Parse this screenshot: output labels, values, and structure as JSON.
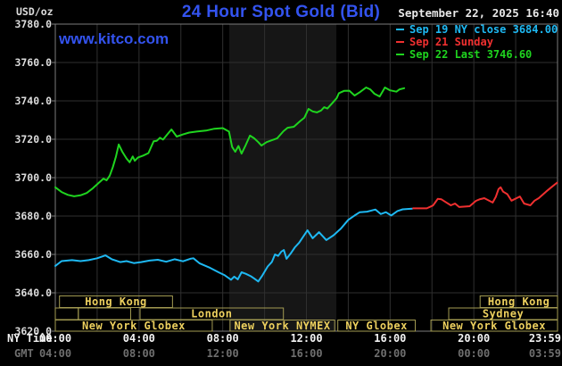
{
  "header": {
    "unit_label": "USD/oz",
    "title": "24 Hour Spot Gold (Bid)",
    "timestamp": "September 22, 2025 16:40",
    "watermark": "www.kitco.com"
  },
  "legend": [
    {
      "label": "Sep 19 NY close 3684.00",
      "color": "#1eb8f2"
    },
    {
      "label": "Sep 21 Sunday",
      "color": "#f03030"
    },
    {
      "label": "Sep 22 Last 3746.60",
      "color": "#1fd41f"
    }
  ],
  "colors": {
    "background": "#000000",
    "grid": "#2f2f2f",
    "frame": "#7d7d7d",
    "band": "#161616",
    "session_border": "#a39b52",
    "session_text": "#edd05e",
    "y_tick_text": "#dcdcdc",
    "ny_time_text": "#f2f2f2",
    "gmt_text": "#6f6f6f",
    "title_blue": "#3353ef"
  },
  "chart_data": {
    "type": "line",
    "title": "24 Hour Spot Gold (Bid)",
    "unit": "USD/oz",
    "xlim_hours": [
      0,
      24
    ],
    "ylim": [
      3620,
      3780
    ],
    "y_tick_step": 20,
    "y_tick_labels": [
      "3780.0",
      "3760.0",
      "3740.0",
      "3720.0",
      "3700.0",
      "3680.0",
      "3660.0",
      "3640.0",
      "3620.0"
    ],
    "x_tick_hours": [
      0,
      4,
      8,
      12,
      16,
      20,
      23.983
    ],
    "x_tick_rows": [
      {
        "label": "NY Time",
        "ticks": [
          "00:00",
          "04:00",
          "08:00",
          "12:00",
          "16:00",
          "20:00",
          "23:59"
        ]
      },
      {
        "label": "GMT",
        "ticks": [
          "04:00",
          "08:00",
          "12:00",
          "16:00",
          "20:00",
          "00:00",
          "03:59"
        ]
      }
    ],
    "grid_v_step_hours": 2,
    "highlight_band": {
      "start_h": 8.31,
      "end_h": 13.43
    },
    "sessions": [
      {
        "row": 0,
        "label": "Hong Kong",
        "start_h": 0.2,
        "end_h": 5.6
      },
      {
        "row": 0,
        "label": "Hong Kong",
        "start_h": 20.3,
        "end_h": 24
      },
      {
        "row": 1,
        "label": "",
        "start_h": 0,
        "end_h": 1.1
      },
      {
        "row": 1,
        "label": "",
        "start_h": 1.1,
        "end_h": 3.6
      },
      {
        "row": 1,
        "label": "London",
        "start_h": 4.05,
        "end_h": 10.9
      },
      {
        "row": 1,
        "label": "Sydney",
        "start_h": 18.8,
        "end_h": 24
      },
      {
        "row": 2,
        "label": "New York Globex",
        "start_h": 0,
        "end_h": 7.5
      },
      {
        "row": 2,
        "label": "New York NYMEX",
        "start_h": 8.35,
        "end_h": 13.35
      },
      {
        "row": 2,
        "label": "NY Globex",
        "start_h": 13.5,
        "end_h": 17.2
      },
      {
        "row": 2,
        "label": "New York Globex",
        "start_h": 17.95,
        "end_h": 24
      }
    ],
    "series": [
      {
        "name": "Sep 19 NY close 3684.00",
        "color": "#1eb8f2",
        "points": [
          [
            0,
            3654
          ],
          [
            0.3,
            3656.5
          ],
          [
            0.8,
            3657
          ],
          [
            1.2,
            3656.5
          ],
          [
            1.6,
            3657
          ],
          [
            2,
            3658
          ],
          [
            2.4,
            3659.5
          ],
          [
            2.7,
            3657.5
          ],
          [
            3.1,
            3656
          ],
          [
            3.4,
            3656.5
          ],
          [
            3.75,
            3655.5
          ],
          [
            4.1,
            3656
          ],
          [
            4.5,
            3656.8
          ],
          [
            4.9,
            3657.2
          ],
          [
            5.3,
            3656.2
          ],
          [
            5.7,
            3657.5
          ],
          [
            6.1,
            3656.4
          ],
          [
            6.45,
            3657.7
          ],
          [
            6.6,
            3658
          ],
          [
            6.9,
            3655.3
          ],
          [
            7.4,
            3653
          ],
          [
            7.8,
            3650.7
          ],
          [
            8.1,
            3649.1
          ],
          [
            8.4,
            3646.8
          ],
          [
            8.55,
            3648.4
          ],
          [
            8.72,
            3647
          ],
          [
            8.9,
            3650.7
          ],
          [
            9.1,
            3649.9
          ],
          [
            9.35,
            3648.6
          ],
          [
            9.5,
            3647.5
          ],
          [
            9.7,
            3645.9
          ],
          [
            9.9,
            3649.1
          ],
          [
            10.15,
            3653.7
          ],
          [
            10.35,
            3656.1
          ],
          [
            10.5,
            3660
          ],
          [
            10.65,
            3659.2
          ],
          [
            10.8,
            3661.5
          ],
          [
            10.92,
            3662.3
          ],
          [
            11.05,
            3657.7
          ],
          [
            11.25,
            3660.5
          ],
          [
            11.45,
            3663.7
          ],
          [
            11.65,
            3666.1
          ],
          [
            12.05,
            3672.6
          ],
          [
            12.3,
            3668.4
          ],
          [
            12.6,
            3671.6
          ],
          [
            12.95,
            3667.5
          ],
          [
            13.3,
            3670
          ],
          [
            13.65,
            3673.5
          ],
          [
            14,
            3678
          ],
          [
            14.3,
            3680.3
          ],
          [
            14.55,
            3682
          ],
          [
            14.9,
            3682.3
          ],
          [
            15.3,
            3683.4
          ],
          [
            15.55,
            3681
          ],
          [
            15.8,
            3682
          ],
          [
            16.05,
            3680.3
          ],
          [
            16.35,
            3682.6
          ],
          [
            16.6,
            3683.5
          ],
          [
            17.05,
            3683.8
          ]
        ]
      },
      {
        "name": "Sep 21 Sunday",
        "color": "#f03030",
        "points": [
          [
            17.1,
            3684
          ],
          [
            17.75,
            3684
          ],
          [
            18.05,
            3685.5
          ],
          [
            18.15,
            3687
          ],
          [
            18.28,
            3689
          ],
          [
            18.45,
            3688.7
          ],
          [
            18.65,
            3687.3
          ],
          [
            18.9,
            3685.6
          ],
          [
            19.1,
            3686.5
          ],
          [
            19.3,
            3684.7
          ],
          [
            19.8,
            3685.1
          ],
          [
            20.1,
            3687.9
          ],
          [
            20.3,
            3688.8
          ],
          [
            20.5,
            3689.3
          ],
          [
            20.9,
            3687
          ],
          [
            21.05,
            3690
          ],
          [
            21.18,
            3694
          ],
          [
            21.28,
            3695
          ],
          [
            21.4,
            3692.7
          ],
          [
            21.6,
            3691.4
          ],
          [
            21.8,
            3688
          ],
          [
            22.2,
            3690.2
          ],
          [
            22.4,
            3686.5
          ],
          [
            22.7,
            3685.6
          ],
          [
            22.9,
            3688
          ],
          [
            23.1,
            3689.3
          ],
          [
            23.45,
            3692.7
          ],
          [
            23.7,
            3695
          ],
          [
            23.98,
            3697.4
          ]
        ]
      },
      {
        "name": "Sep 22 Last 3746.60",
        "color": "#1fd41f",
        "points": [
          [
            0,
            3695
          ],
          [
            0.3,
            3692.5
          ],
          [
            0.6,
            3691
          ],
          [
            0.9,
            3690.3
          ],
          [
            1.2,
            3690.8
          ],
          [
            1.5,
            3692
          ],
          [
            1.8,
            3694.5
          ],
          [
            2.05,
            3697
          ],
          [
            2.3,
            3699.5
          ],
          [
            2.45,
            3698.6
          ],
          [
            2.6,
            3701
          ],
          [
            2.75,
            3705.5
          ],
          [
            2.9,
            3711
          ],
          [
            3.03,
            3717.3
          ],
          [
            3.2,
            3713.5
          ],
          [
            3.4,
            3710
          ],
          [
            3.55,
            3708
          ],
          [
            3.7,
            3711
          ],
          [
            3.8,
            3708.8
          ],
          [
            3.95,
            3710.5
          ],
          [
            4.2,
            3711.5
          ],
          [
            4.45,
            3712.8
          ],
          [
            4.7,
            3719
          ],
          [
            4.85,
            3719.2
          ],
          [
            5,
            3720.8
          ],
          [
            5.15,
            3719.8
          ],
          [
            5.35,
            3722.5
          ],
          [
            5.55,
            3725.1
          ],
          [
            5.8,
            3721.4
          ],
          [
            6.1,
            3722.5
          ],
          [
            6.4,
            3723.5
          ],
          [
            6.75,
            3724
          ],
          [
            7.2,
            3724.5
          ],
          [
            7.6,
            3725.5
          ],
          [
            8,
            3725.8
          ],
          [
            8.3,
            3724
          ],
          [
            8.45,
            3716
          ],
          [
            8.6,
            3713.5
          ],
          [
            8.75,
            3716.5
          ],
          [
            8.9,
            3712.5
          ],
          [
            9.1,
            3717
          ],
          [
            9.3,
            3721.9
          ],
          [
            9.5,
            3720.5
          ],
          [
            9.7,
            3718.5
          ],
          [
            9.85,
            3716.7
          ],
          [
            10.1,
            3718.5
          ],
          [
            10.35,
            3719.5
          ],
          [
            10.6,
            3720.5
          ],
          [
            10.9,
            3724.2
          ],
          [
            11.1,
            3726
          ],
          [
            11.4,
            3726.5
          ],
          [
            11.7,
            3729.5
          ],
          [
            11.9,
            3731.2
          ],
          [
            12.1,
            3735.8
          ],
          [
            12.3,
            3734.5
          ],
          [
            12.5,
            3734
          ],
          [
            12.7,
            3735
          ],
          [
            12.85,
            3736.7
          ],
          [
            13,
            3736
          ],
          [
            13.25,
            3739
          ],
          [
            13.45,
            3741.5
          ],
          [
            13.55,
            3744
          ],
          [
            13.8,
            3745.2
          ],
          [
            14.05,
            3745.3
          ],
          [
            14.3,
            3742.8
          ],
          [
            14.55,
            3744.5
          ],
          [
            14.85,
            3747
          ],
          [
            15.05,
            3746
          ],
          [
            15.25,
            3743.7
          ],
          [
            15.5,
            3742.3
          ],
          [
            15.75,
            3747
          ],
          [
            16,
            3745.5
          ],
          [
            16.3,
            3744.8
          ],
          [
            16.45,
            3746
          ],
          [
            16.67,
            3746.6
          ]
        ]
      }
    ]
  }
}
